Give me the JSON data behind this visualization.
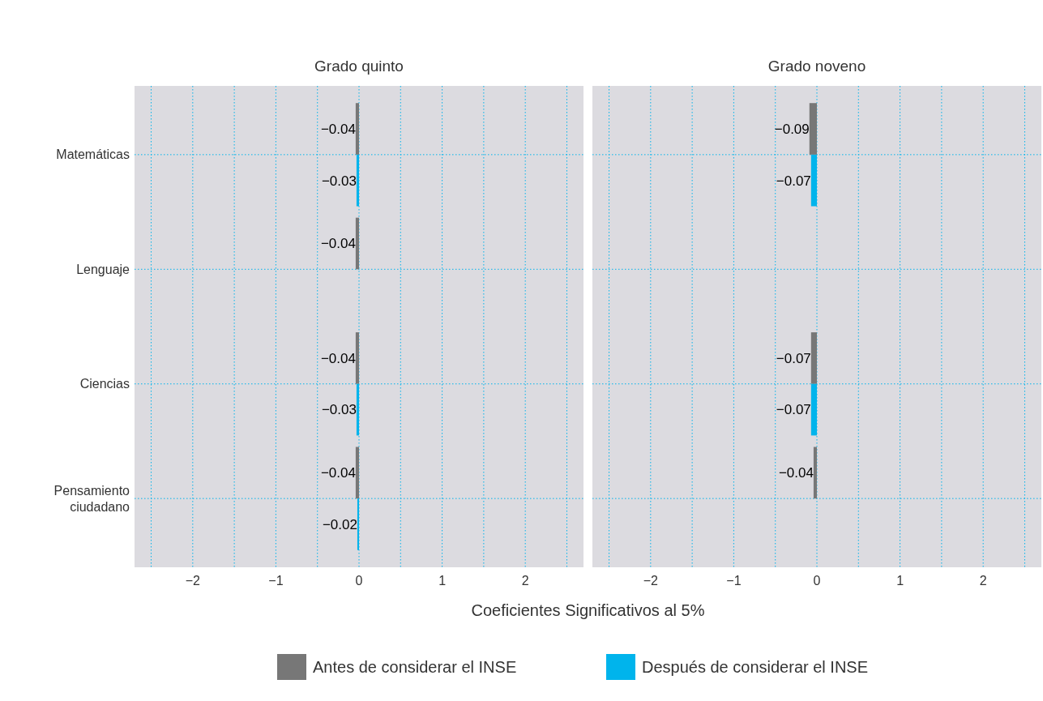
{
  "chart_data": [
    {
      "type": "bar",
      "orientation": "horizontal",
      "title": "Grado quinto",
      "xlabel": "Coeficientes Significativos al 5%",
      "categories": [
        "Matemáticas",
        "Lenguaje",
        "Ciencias",
        "Pensamiento\nciudadano"
      ],
      "series": [
        {
          "name": "Antes de considerar el INSE",
          "color": "#777777",
          "values": [
            -0.04,
            -0.04,
            -0.04,
            -0.04
          ],
          "value_labels": [
            "−0.04",
            "−0.04",
            "−0.04",
            "−0.04"
          ]
        },
        {
          "name": "Después de considerar el INSE",
          "color": "#00b4ec",
          "values": [
            -0.03,
            null,
            -0.03,
            -0.02
          ],
          "value_labels": [
            "−0.03",
            null,
            "−0.03",
            "−0.02"
          ]
        }
      ],
      "xlim": [
        -2.7,
        2.7
      ],
      "xticks": [
        {
          "value": -2.5,
          "label": null
        },
        {
          "value": -2,
          "label": "−2"
        },
        {
          "value": -1.5,
          "label": null
        },
        {
          "value": -1,
          "label": "−1"
        },
        {
          "value": -0.5,
          "label": null
        },
        0,
        {
          "value": 0.5,
          "label": null
        },
        1,
        {
          "value": 1.5,
          "label": null
        },
        2,
        {
          "value": 2.5,
          "label": null
        }
      ],
      "grid": true,
      "legend": "bottom"
    },
    {
      "type": "bar",
      "orientation": "horizontal",
      "title": "Grado noveno",
      "categories": [
        null,
        null,
        null,
        null
      ],
      "series": [
        {
          "color": "#777777",
          "values": [
            -0.09,
            null,
            -0.07,
            -0.04
          ],
          "value_labels": [
            "−0.09",
            null,
            "−0.07",
            "−0.04"
          ]
        },
        {
          "color": "#00b4ec",
          "values": [
            -0.07,
            null,
            -0.07,
            null
          ],
          "value_labels": [
            "−0.07",
            null,
            "−0.07",
            null
          ]
        }
      ],
      "xlim": [
        -2.7,
        2.7
      ],
      "xticks": [
        {
          "value": -2.5,
          "label": null
        },
        {
          "value": -2,
          "label": "−2"
        },
        {
          "value": -1.5,
          "label": null
        },
        {
          "value": -1,
          "label": "−1"
        },
        {
          "value": -0.5,
          "label": null
        },
        0,
        {
          "value": 0.5,
          "label": null
        },
        1,
        {
          "value": 1.5,
          "label": null
        },
        2,
        {
          "value": 2.5,
          "label": null
        }
      ],
      "grid": true,
      "tick_labels": "x"
    }
  ]
}
